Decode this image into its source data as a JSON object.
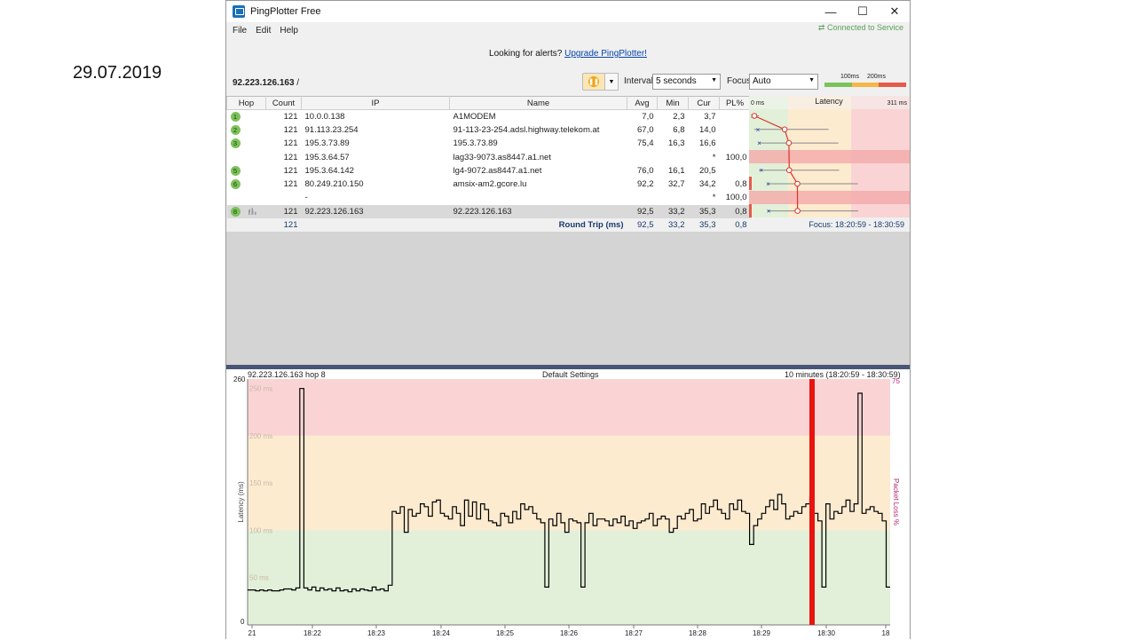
{
  "slide": {
    "date": "29.07.2019"
  },
  "window": {
    "title": "PingPlotter Free",
    "minimize": "—",
    "maximize": "☐",
    "close": "✕"
  },
  "menu": {
    "file": "File",
    "edit": "Edit",
    "help": "Help"
  },
  "status": {
    "connected": "⇄ Connected to Service"
  },
  "promo": {
    "text": "Looking for alerts?",
    "link": "Upgrade PingPlotter!"
  },
  "toolbar": {
    "target": "92.223.126.163",
    "target_suffix": " /",
    "interval_label": "Interval",
    "interval_value": "5 seconds",
    "focus_label": "Focus",
    "focus_value": "Auto",
    "scale_100": "100ms",
    "scale_200": "200ms"
  },
  "table": {
    "columns": {
      "hop": "Hop",
      "count": "Count",
      "ip": "IP",
      "name": "Name",
      "avg": "Avg",
      "min": "Min",
      "cur": "Cur",
      "pl": "PL%"
    },
    "latency": {
      "label": "Latency",
      "min_label": "0 ms",
      "max_label": "311 ms"
    },
    "rows": [
      {
        "hop": "1",
        "count": "121",
        "ip": "10.0.0.138",
        "name": "A1MODEM",
        "avg": "7,0",
        "min": "2,3",
        "cur": "3,7",
        "pl": ""
      },
      {
        "hop": "2",
        "count": "121",
        "ip": "91.113.23.254",
        "name": "91-113-23-254.adsl.highway.telekom.at",
        "avg": "67,0",
        "min": "6,8",
        "cur": "14,0",
        "pl": ""
      },
      {
        "hop": "3",
        "count": "121",
        "ip": "195.3.73.89",
        "name": "195.3.73.89",
        "avg": "75,4",
        "min": "16,3",
        "cur": "16,6",
        "pl": ""
      },
      {
        "hop": "",
        "count": "121",
        "ip": "195.3.64.57",
        "name": "lag33-9073.as8447.a1.net",
        "avg": "",
        "min": "",
        "cur": "*",
        "pl": "100,0"
      },
      {
        "hop": "5",
        "count": "121",
        "ip": "195.3.64.142",
        "name": "lg4-9072.as8447.a1.net",
        "avg": "76,0",
        "min": "16,1",
        "cur": "20,5",
        "pl": ""
      },
      {
        "hop": "6",
        "count": "121",
        "ip": "80.249.210.150",
        "name": "amsix-am2.gcore.lu",
        "avg": "92,2",
        "min": "32,7",
        "cur": "34,2",
        "pl": "0,8"
      },
      {
        "hop": "",
        "count": "",
        "ip": "-",
        "name": "",
        "avg": "",
        "min": "",
        "cur": "*",
        "pl": "100,0"
      },
      {
        "hop": "8",
        "count": "121",
        "ip": "92.223.126.163",
        "name": "92.223.126.163",
        "avg": "92,5",
        "min": "33,2",
        "cur": "35,3",
        "pl": "0,8"
      }
    ],
    "total": {
      "count": "121",
      "label": "Round Trip (ms)",
      "avg": "92,5",
      "min": "33,2",
      "cur": "35,3",
      "pl": "0,8",
      "focus": "Focus: 18:20:59 - 18:30:59"
    }
  },
  "graph": {
    "header_left": "92.223.126.163 hop 8",
    "header_center": "Default Settings",
    "header_right": "10 minutes (18:20:59 - 18:30:59)",
    "y_axis_label": "Latency (ms)",
    "y2_axis_label": "Packet Loss %",
    "y_top": "260",
    "y_bottom": "0",
    "y2_top": "75",
    "band_labels": [
      "250 ms",
      "200 ms",
      "150 ms",
      "100 ms",
      "50 ms"
    ],
    "x_ticks": [
      "21",
      "18:22",
      "18:23",
      "18:24",
      "18:25",
      "18:26",
      "18:27",
      "18:28",
      "18:29",
      "18:30",
      "18"
    ],
    "colors": {
      "good": "#e2f0d9",
      "warn": "#fdebd0",
      "bad": "#fad4d4",
      "line": "#000000",
      "loss": "#e8140f"
    }
  }
}
